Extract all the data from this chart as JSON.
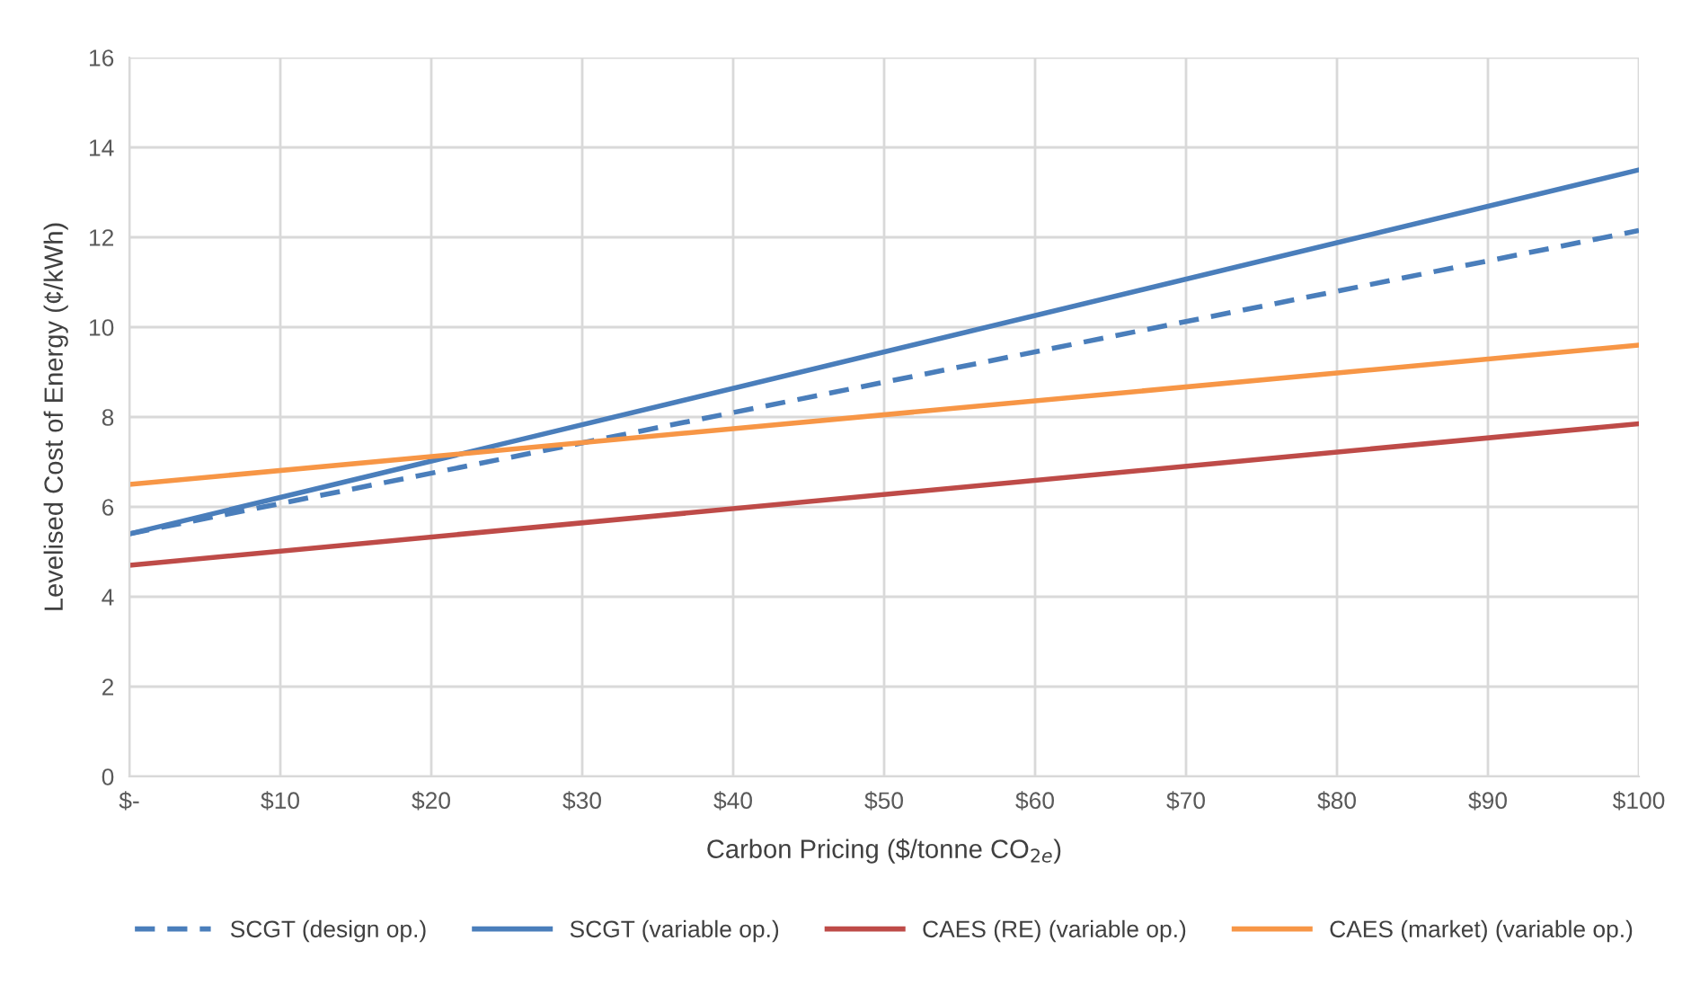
{
  "chart_data": {
    "type": "line",
    "xlabel": "Carbon Pricing ($/tonne CO$_{2e}$)",
    "ylabel": "Levelised Cost of Energy (¢/kWh)",
    "x": [
      0,
      100
    ],
    "series": [
      {
        "name": "SCGT (design op.)",
        "color": "#4a7ebb",
        "values": [
          5.4,
          12.15
        ],
        "line_style": "dashed"
      },
      {
        "name": "SCGT (variable op.)",
        "color": "#4a7ebb",
        "values": [
          5.4,
          13.5
        ]
      },
      {
        "name": "CAES (RE) (variable op.)",
        "color": "#be4b48",
        "values": [
          4.7,
          7.85
        ]
      },
      {
        "name": "CAES (market) (variable op.)",
        "color": "#f79646",
        "values": [
          6.5,
          9.6
        ]
      }
    ],
    "xlim": [
      0,
      100
    ],
    "xticks": [
      {
        "value": 0,
        "label": "$-"
      },
      {
        "value": 10,
        "label": "$10"
      },
      {
        "value": 20,
        "label": "$20"
      },
      {
        "value": 30,
        "label": "$30"
      },
      {
        "value": 40,
        "label": "$40"
      },
      {
        "value": 50,
        "label": "$50"
      },
      {
        "value": 60,
        "label": "$60"
      },
      {
        "value": 70,
        "label": "$70"
      },
      {
        "value": 80,
        "label": "$80"
      },
      {
        "value": 90,
        "label": "$90"
      },
      {
        "value": 100,
        "label": "$100"
      }
    ],
    "ylim": [
      0,
      16
    ],
    "yticks": [
      0,
      2,
      4,
      6,
      8,
      10,
      12,
      14,
      16
    ],
    "grid": true,
    "legend": "bottom",
    "marker": "none",
    "line_style": "solid"
  }
}
